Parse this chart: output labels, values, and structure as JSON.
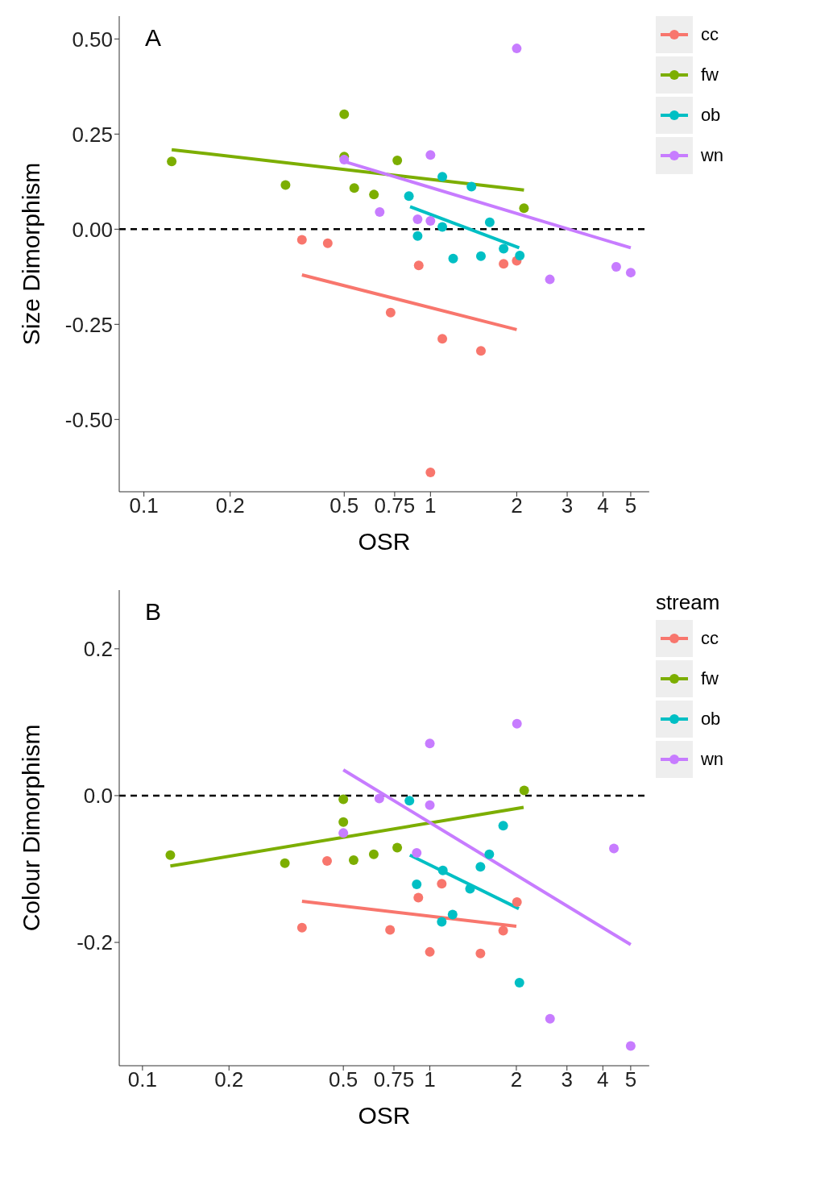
{
  "chart_data": [
    {
      "type": "scatter",
      "title": "A",
      "xlabel": "OSR",
      "ylabel": "Size Dimorphism",
      "log": "x",
      "marker": "circle",
      "legend": "top right",
      "xlim": [
        0.082,
        5.8
      ],
      "xticks": [
        0.1,
        0.2,
        0.5,
        0.75,
        1,
        2,
        3,
        4,
        5
      ],
      "ylim": [
        -0.69,
        0.56
      ],
      "yticks": [
        {
          "value": -0.5,
          "label": "-0.50"
        },
        {
          "value": -0.25,
          "label": "-0.25"
        },
        {
          "value": 0,
          "label": "0.00"
        },
        {
          "value": 0.25,
          "label": "0.25"
        },
        {
          "value": 0.5,
          "label": "0.50"
        }
      ],
      "ref_lines": [
        {
          "axis": "y",
          "value": 0,
          "color": "#000000",
          "line_style": "dashed"
        }
      ],
      "series": [
        {
          "name": "cc",
          "color": "#f8766d",
          "x": [
            0.356,
            0.438,
            0.726,
            0.91,
            1.1,
            1.5,
            1.0,
            1.8,
            2.0
          ],
          "values": [
            -0.028,
            -0.037,
            -0.219,
            -0.095,
            -0.288,
            -0.32,
            -0.639,
            -0.091,
            -0.083
          ]
        },
        {
          "name": "fw",
          "color": "#7cae00",
          "x": [
            0.125,
            0.312,
            0.5,
            0.5,
            0.542,
            0.635,
            0.766,
            2.12
          ],
          "values": [
            0.178,
            0.116,
            0.302,
            0.191,
            0.108,
            0.091,
            0.181,
            0.055
          ]
        },
        {
          "name": "ob",
          "color": "#00bfc4",
          "x": [
            0.841,
            0.902,
            1.1,
            1.1,
            1.2,
            1.39,
            1.5,
            1.61,
            1.8,
            2.05
          ],
          "values": [
            0.087,
            -0.018,
            0.138,
            0.006,
            -0.077,
            0.112,
            -0.071,
            0.018,
            -0.051,
            -0.069
          ]
        },
        {
          "name": "wn",
          "color": "#c77cff",
          "x": [
            0.5,
            0.665,
            1.0,
            0.902,
            1.0,
            2.0,
            2.61,
            4.45,
            5.0
          ],
          "values": [
            0.183,
            0.045,
            0.195,
            0.026,
            0.022,
            0.475,
            -0.132,
            -0.099,
            -0.114
          ]
        },
        {
          "type": "line",
          "marker": "none",
          "color": "#f8766d",
          "x": [
            0.356,
            2.0
          ],
          "values": [
            -0.12,
            -0.264
          ]
        },
        {
          "type": "line",
          "marker": "none",
          "color": "#7cae00",
          "x": [
            0.125,
            2.12
          ],
          "values": [
            0.209,
            0.103
          ]
        },
        {
          "type": "line",
          "marker": "none",
          "color": "#00bfc4",
          "x": [
            0.849,
            2.04
          ],
          "values": [
            0.059,
            -0.049
          ]
        },
        {
          "type": "line",
          "marker": "none",
          "color": "#c77cff",
          "x": [
            0.5,
            5.0
          ],
          "values": [
            0.178,
            -0.049
          ]
        }
      ]
    },
    {
      "type": "scatter",
      "title": "B",
      "xlabel": "OSR",
      "ylabel": "Colour Dimorphism",
      "legend_title": "stream",
      "log": "x",
      "marker": "circle",
      "legend": "top right",
      "xlim": [
        0.083,
        5.8
      ],
      "xticks": [
        0.1,
        0.2,
        0.5,
        0.75,
        1,
        2,
        3,
        4,
        5
      ],
      "ylim": [
        -0.368,
        0.28
      ],
      "yticks": [
        -0.2,
        {
          "value": 0,
          "label": "0.0"
        },
        0.2
      ],
      "ref_lines": [
        {
          "axis": "y",
          "value": 0,
          "color": "#000000",
          "line_style": "dashed"
        }
      ],
      "series": [
        {
          "name": "cc",
          "color": "#f8766d",
          "x": [
            0.359,
            0.439,
            0.727,
            0.912,
            1.1,
            1.0,
            1.5,
            1.8,
            2.01
          ],
          "values": [
            -0.18,
            -0.089,
            -0.183,
            -0.139,
            -0.12,
            -0.213,
            -0.215,
            -0.184,
            -0.145
          ]
        },
        {
          "name": "fw",
          "color": "#7cae00",
          "x": [
            0.125,
            0.313,
            0.5,
            0.5,
            0.543,
            0.638,
            0.77,
            2.13
          ],
          "values": [
            -0.081,
            -0.092,
            -0.005,
            -0.036,
            -0.088,
            -0.08,
            -0.071,
            0.007
          ]
        },
        {
          "name": "ob",
          "color": "#00bfc4",
          "x": [
            0.849,
            0.9,
            1.11,
            1.2,
            1.1,
            1.38,
            1.5,
            1.61,
            1.8,
            2.05
          ],
          "values": [
            -0.007,
            -0.121,
            -0.102,
            -0.162,
            -0.172,
            -0.127,
            -0.097,
            -0.08,
            -0.041,
            -0.255
          ]
        },
        {
          "name": "wn",
          "color": "#c77cff",
          "x": [
            0.5,
            0.667,
            1.0,
            1.0,
            0.9,
            2.01,
            2.62,
            4.37,
            5.0
          ],
          "values": [
            -0.051,
            -0.004,
            0.071,
            -0.013,
            -0.078,
            0.098,
            -0.304,
            -0.072,
            -0.341
          ]
        },
        {
          "type": "line",
          "marker": "none",
          "color": "#f8766d",
          "x": [
            0.359,
            2.0
          ],
          "values": [
            -0.144,
            -0.178
          ]
        },
        {
          "type": "line",
          "marker": "none",
          "color": "#7cae00",
          "x": [
            0.125,
            2.12
          ],
          "values": [
            -0.096,
            -0.016
          ]
        },
        {
          "type": "line",
          "marker": "none",
          "color": "#00bfc4",
          "x": [
            0.852,
            2.04
          ],
          "values": [
            -0.081,
            -0.154
          ]
        },
        {
          "type": "line",
          "marker": "none",
          "color": "#c77cff",
          "x": [
            0.5,
            5.0
          ],
          "values": [
            0.035,
            -0.203
          ]
        }
      ]
    }
  ]
}
